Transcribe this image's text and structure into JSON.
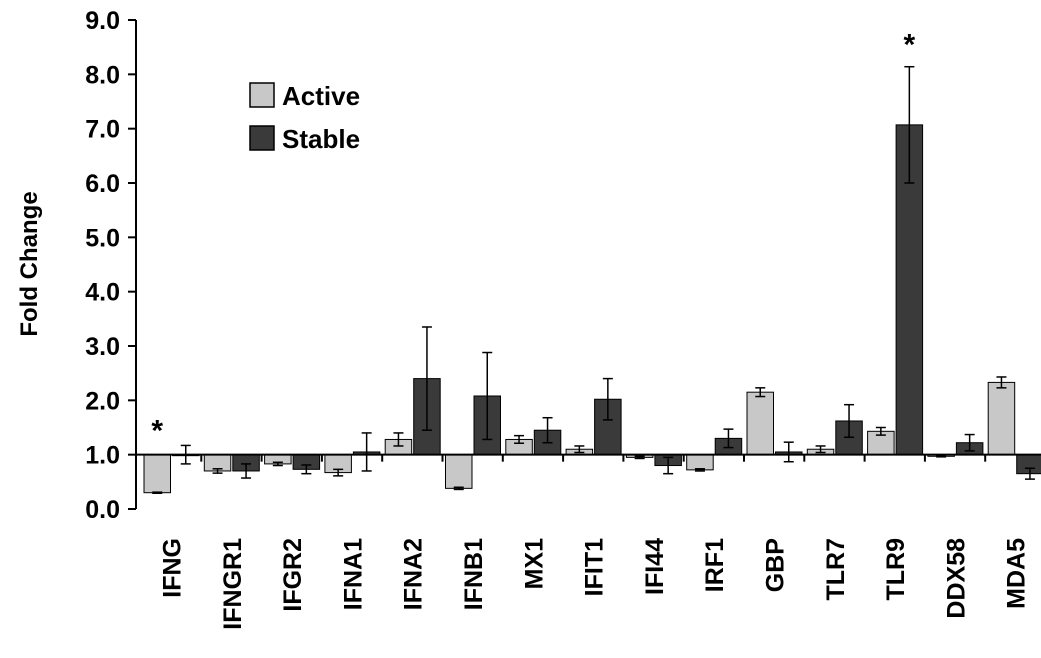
{
  "chart_data": {
    "type": "bar",
    "title": "",
    "xlabel": "",
    "ylabel": "Fold Change",
    "ylim": [
      0,
      9
    ],
    "yticks": [
      "0.0",
      "1.0",
      "2.0",
      "3.0",
      "4.0",
      "5.0",
      "6.0",
      "7.0",
      "8.0",
      "9.0"
    ],
    "baseline": 1.0,
    "legend_position": "top-left",
    "categories": [
      "IFNG",
      "IFNGR1",
      "IFGR2",
      "IFNA1",
      "IFNA2",
      "IFNB1",
      "MX1",
      "IFIT1",
      "IFI44",
      "IRF1",
      "GBP",
      "TLR7",
      "TLR9",
      "DDX58",
      "MDA5"
    ],
    "series": [
      {
        "name": "Active",
        "color": "#c8c8c8",
        "values": [
          0.3,
          0.7,
          0.83,
          0.67,
          1.28,
          0.38,
          1.28,
          1.1,
          0.95,
          0.72,
          2.15,
          1.1,
          1.43,
          0.97,
          2.33
        ],
        "errors": [
          0.01,
          0.04,
          0.03,
          0.06,
          0.12,
          0.02,
          0.07,
          0.06,
          0.02,
          0.02,
          0.08,
          0.06,
          0.07,
          0.01,
          0.1
        ]
      },
      {
        "name": "Stable",
        "color": "#3a3a3a",
        "values": [
          1.0,
          0.7,
          0.73,
          1.05,
          2.4,
          2.08,
          1.45,
          2.02,
          0.8,
          1.3,
          1.05,
          1.62,
          7.07,
          1.22,
          0.65
        ]
      }
    ],
    "stable_errors": [
      0.17,
      0.13,
      0.08,
      0.35,
      0.95,
      0.8,
      0.23,
      0.38,
      0.15,
      0.17,
      0.18,
      0.3,
      1.07,
      0.15,
      0.1
    ],
    "annotations": [
      {
        "text": "*",
        "category": "IFNG",
        "series": "Active"
      },
      {
        "text": "*",
        "category": "TLR9",
        "series": "Stable"
      }
    ]
  }
}
